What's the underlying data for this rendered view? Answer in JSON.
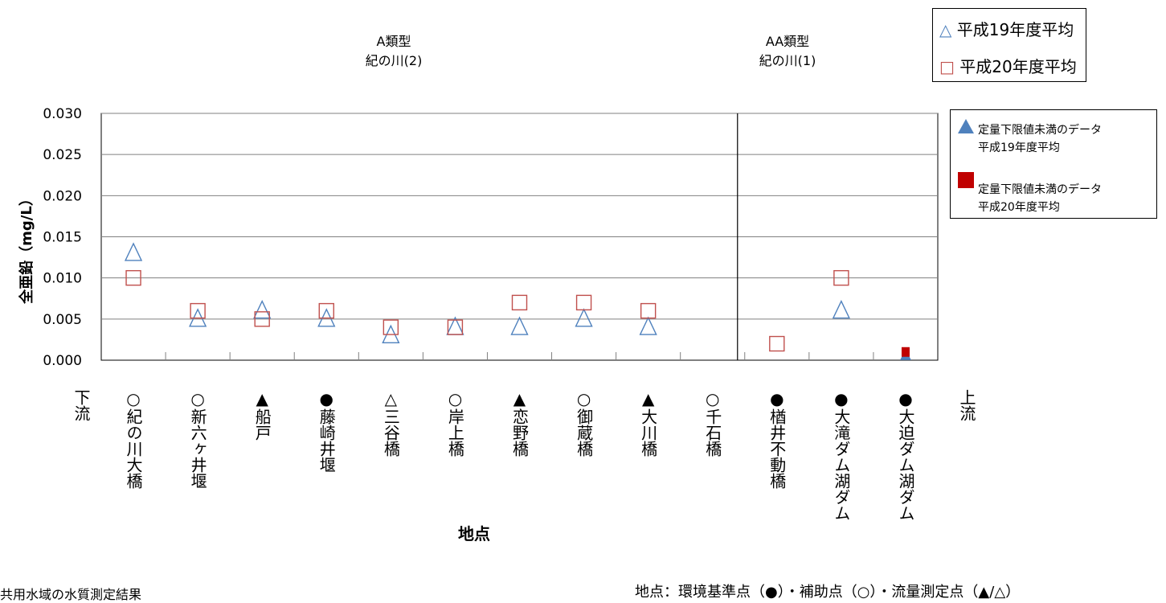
{
  "chart_data": {
    "type": "scatter",
    "ylabel": "全亜鉛（mg/L）",
    "xlabel": "地点",
    "ylim": [
      0,
      0.03
    ],
    "yticks": [
      "0.000",
      "0.005",
      "0.010",
      "0.015",
      "0.020",
      "0.025",
      "0.030"
    ],
    "grid": true,
    "categories": [
      "○紀の川大橋",
      "○新六ヶ井堰",
      "▲船戸",
      "●藤崎井堰",
      "△三谷橋",
      "○岸上橋",
      "▲恋野橋",
      "○御蔵橋",
      "▲大川橋",
      "○千石橋",
      "●楢井不動橋",
      "●大滝ダム湖ダム",
      "●大迫ダム湖ダム"
    ],
    "series": [
      {
        "name": "平成19年度平均",
        "marker": "open-triangle",
        "color": "#4F81BD",
        "values": [
          0.013,
          0.005,
          0.006,
          0.005,
          0.003,
          0.004,
          0.004,
          0.005,
          0.004,
          null,
          null,
          0.006,
          null
        ]
      },
      {
        "name": "平成20年度平均",
        "marker": "open-square",
        "color": "#C0504D",
        "values": [
          0.01,
          0.006,
          0.005,
          0.006,
          0.004,
          0.004,
          0.007,
          0.007,
          0.006,
          null,
          0.002,
          0.01,
          null
        ]
      },
      {
        "name": "定量下限値未満のデータ 平成19年度平均",
        "marker": "filled-triangle",
        "color": "#4F81BD",
        "values": [
          null,
          null,
          null,
          null,
          null,
          null,
          null,
          null,
          null,
          null,
          null,
          null,
          0.0005
        ]
      },
      {
        "name": "定量下限値未満のデータ 平成20年度平均",
        "marker": "filled-square",
        "color": "#C00000",
        "values": [
          null,
          null,
          null,
          null,
          null,
          null,
          null,
          null,
          null,
          null,
          null,
          null,
          0.001
        ]
      }
    ],
    "regions": [
      {
        "title": "A類型",
        "subtitle": "紀の川(2)"
      },
      {
        "title": "AA類型",
        "subtitle": "紀の川(1)"
      }
    ],
    "x_ends": {
      "left": "下流",
      "right": "上流"
    }
  },
  "legend_main": [
    {
      "symbol": "△",
      "label": "平成19年度平均"
    },
    {
      "symbol": "□",
      "label": "平成20年度平均"
    }
  ],
  "legend_below": [
    {
      "line1": "定量下限値未満のデータ",
      "line2": "平成19年度平均"
    },
    {
      "line1": "定量下限値未満のデータ",
      "line2": "平成20年度平均"
    }
  ],
  "footnotes": {
    "left": "共用水域の水質測定結果",
    "right": "地点：環境基準点（●）・補助点（○）・流量測定点（▲/△）"
  }
}
